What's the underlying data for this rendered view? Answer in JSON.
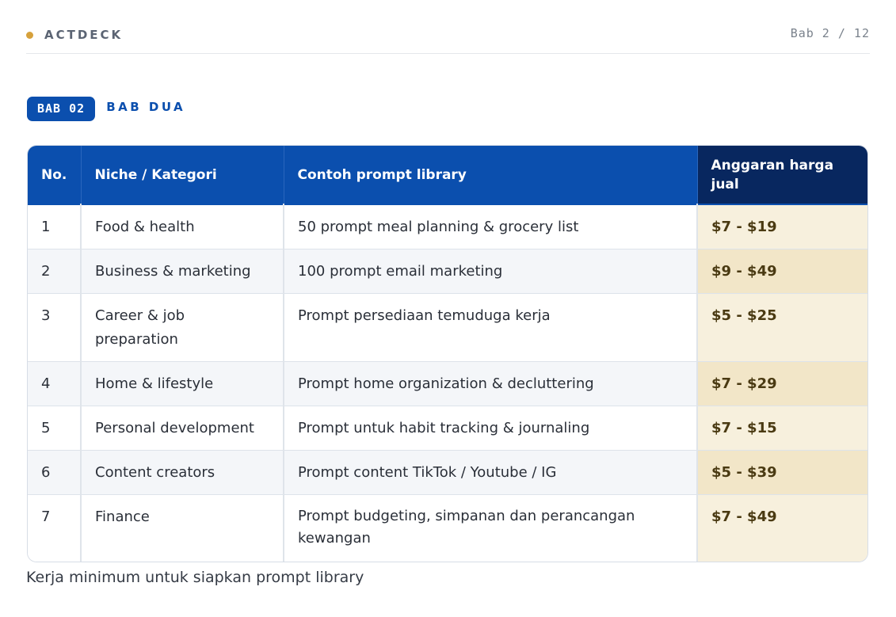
{
  "header": {
    "brand": "ACTDECK",
    "page_indicator": "Bab 2 / 12",
    "accent_color": "#d6a13c"
  },
  "chapter": {
    "badge": "BAB 02",
    "title": "BAB DUA",
    "color": "#0b4fae"
  },
  "table": {
    "columns": [
      "No.",
      "Niche / Kategori",
      "Contoh prompt library",
      "Anggaran harga jual"
    ],
    "rows": [
      {
        "no": "1",
        "niche": "Food & health",
        "contoh": "50 prompt meal planning & grocery list",
        "harga": "$7 - $19"
      },
      {
        "no": "2",
        "niche": "Business & marketing",
        "contoh": "100 prompt email marketing",
        "harga": "$9 - $49"
      },
      {
        "no": "3",
        "niche": "Career & job preparation",
        "contoh": "Prompt persediaan temuduga kerja",
        "harga": "$5 - $25"
      },
      {
        "no": "4",
        "niche": "Home & lifestyle",
        "contoh": "Prompt home organization & decluttering",
        "harga": "$7 - $29"
      },
      {
        "no": "5",
        "niche": "Personal development",
        "contoh": "Prompt untuk habit tracking & journaling",
        "harga": "$7 - $15"
      },
      {
        "no": "6",
        "niche": "Content creators",
        "contoh": "Prompt content TikTok / Youtube / IG",
        "harga": "$5 - $39"
      },
      {
        "no": "7",
        "niche": "Finance",
        "contoh": "Prompt budgeting, simpanan dan perancangan kewangan",
        "harga": "$7 - $49"
      }
    ]
  },
  "footnote": "Kerja minimum untuk siapkan prompt library"
}
